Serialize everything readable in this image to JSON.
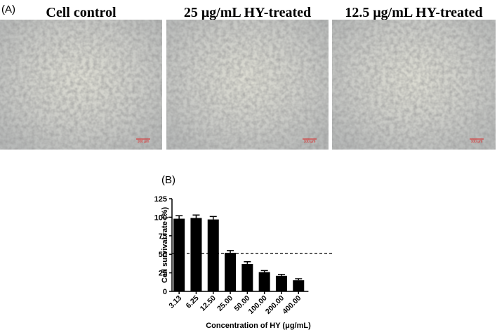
{
  "figure_label_a": "(A)",
  "panels": [
    {
      "title": "Cell control",
      "scale_bar": "100 μm"
    },
    {
      "title": "25 μg/mL HY-treated",
      "scale_bar": "100 μm"
    },
    {
      "title": "12.5 μg/mL HY-treated",
      "scale_bar": "100 μm"
    }
  ],
  "chart_data": {
    "type": "bar",
    "label": "(B)",
    "x_label": "Concentration of HY (μg/mL)",
    "y_label": "Cell survival rate (%)",
    "categories": [
      "3.13",
      "6.25",
      "12.50",
      "25.00",
      "50.00",
      "100.00",
      "200.00",
      "400.00"
    ],
    "values": [
      98,
      99,
      97,
      52,
      37,
      26,
      21,
      15
    ],
    "errors": [
      4,
      4,
      4,
      3,
      3,
      2,
      2,
      2
    ],
    "color": "#000000",
    "ylim": [
      0,
      125
    ],
    "yticks": [
      0,
      25,
      50,
      75,
      100,
      125
    ],
    "reference_line": 51
  }
}
